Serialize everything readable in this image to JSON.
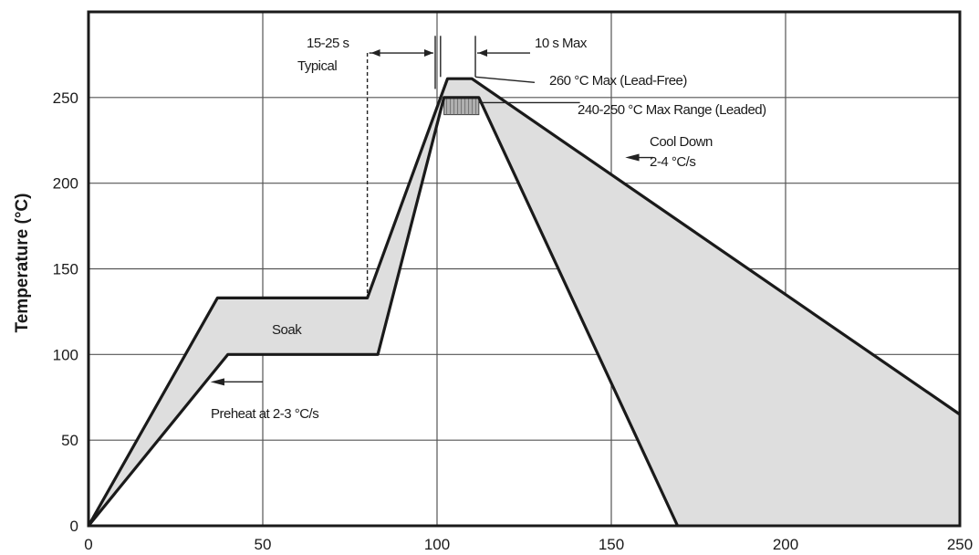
{
  "chart_data": {
    "type": "area",
    "ylabel": "Temperature (°C)",
    "xlabel": "",
    "xlim": [
      0,
      250
    ],
    "ylim": [
      0,
      300
    ],
    "x_ticks": [
      0,
      50,
      100,
      150,
      200,
      250
    ],
    "y_ticks": [
      0,
      50,
      100,
      150,
      200,
      250
    ],
    "grid": true,
    "series": [
      {
        "role": "upper-profile",
        "x": [
          0,
          37,
          80,
          103,
          110,
          250
        ],
        "y": [
          0,
          133,
          133,
          261,
          261,
          65
        ]
      },
      {
        "role": "lower-profile",
        "x": [
          0,
          40,
          83,
          102,
          112,
          169
        ],
        "y": [
          0,
          100,
          100,
          250,
          250,
          0
        ]
      }
    ],
    "leaded_band": {
      "x": [
        102,
        112
      ],
      "y": [
        240,
        250
      ]
    },
    "timing_markers": {
      "typical_window_x": [
        80,
        100
      ],
      "max_window_x": [
        101,
        111
      ]
    },
    "annotations": {
      "typical_top": "15-25 s",
      "typical_bottom": "Typical",
      "max_time": "10 s Max",
      "lead_free": "260 °C Max (Lead-Free)",
      "leaded": "240-250 °C Max Range (Leaded)",
      "cool_top": "Cool Down",
      "cool_bottom": "2-4 °C/s",
      "soak": "Soak",
      "preheat": "Preheat at 2-3 °C/s"
    }
  }
}
